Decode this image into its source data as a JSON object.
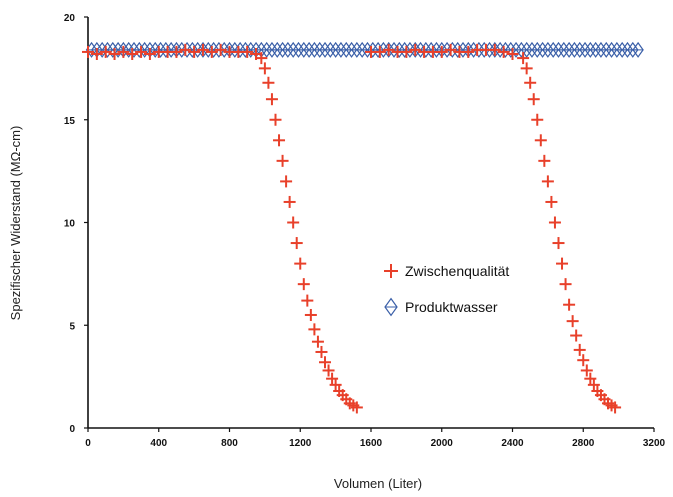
{
  "chart_data": {
    "type": "scatter",
    "xlabel": "Volumen (Liter)",
    "ylabel": "Spezifischer Widerstand (MΩ-cm)",
    "xlim": [
      0,
      3200
    ],
    "ylim": [
      0,
      20
    ],
    "x_ticks": [
      "0",
      "400",
      "800",
      "1200",
      "1600",
      "2000",
      "2400",
      "2800",
      "3200"
    ],
    "y_ticks": [
      "0",
      "5",
      "10",
      "15",
      "20"
    ],
    "grid": false,
    "legend_position": "center-right",
    "series": [
      {
        "name": "Zwischenqualität",
        "marker": "plus",
        "color": "#e8402a",
        "points": [
          [
            0,
            18.3
          ],
          [
            50,
            18.2
          ],
          [
            100,
            18.3
          ],
          [
            150,
            18.2
          ],
          [
            200,
            18.3
          ],
          [
            250,
            18.2
          ],
          [
            300,
            18.3
          ],
          [
            350,
            18.2
          ],
          [
            400,
            18.3
          ],
          [
            450,
            18.3
          ],
          [
            500,
            18.3
          ],
          [
            550,
            18.4
          ],
          [
            600,
            18.3
          ],
          [
            650,
            18.4
          ],
          [
            700,
            18.3
          ],
          [
            750,
            18.4
          ],
          [
            800,
            18.3
          ],
          [
            850,
            18.3
          ],
          [
            900,
            18.3
          ],
          [
            950,
            18.2
          ],
          [
            980,
            18.0
          ],
          [
            1000,
            17.5
          ],
          [
            1020,
            16.8
          ],
          [
            1040,
            16.0
          ],
          [
            1060,
            15.0
          ],
          [
            1080,
            14.0
          ],
          [
            1100,
            13.0
          ],
          [
            1120,
            12.0
          ],
          [
            1140,
            11.0
          ],
          [
            1160,
            10.0
          ],
          [
            1180,
            9.0
          ],
          [
            1200,
            8.0
          ],
          [
            1220,
            7.0
          ],
          [
            1240,
            6.2
          ],
          [
            1260,
            5.5
          ],
          [
            1280,
            4.8
          ],
          [
            1300,
            4.2
          ],
          [
            1320,
            3.7
          ],
          [
            1340,
            3.2
          ],
          [
            1360,
            2.8
          ],
          [
            1380,
            2.4
          ],
          [
            1400,
            2.1
          ],
          [
            1420,
            1.8
          ],
          [
            1440,
            1.6
          ],
          [
            1460,
            1.4
          ],
          [
            1480,
            1.2
          ],
          [
            1500,
            1.1
          ],
          [
            1520,
            1.0
          ],
          [
            1600,
            18.3
          ],
          [
            1650,
            18.3
          ],
          [
            1700,
            18.4
          ],
          [
            1750,
            18.3
          ],
          [
            1800,
            18.3
          ],
          [
            1850,
            18.4
          ],
          [
            1900,
            18.3
          ],
          [
            1950,
            18.3
          ],
          [
            2000,
            18.3
          ],
          [
            2050,
            18.4
          ],
          [
            2100,
            18.3
          ],
          [
            2150,
            18.3
          ],
          [
            2200,
            18.4
          ],
          [
            2250,
            18.4
          ],
          [
            2300,
            18.4
          ],
          [
            2350,
            18.3
          ],
          [
            2400,
            18.2
          ],
          [
            2460,
            18.0
          ],
          [
            2480,
            17.5
          ],
          [
            2500,
            16.8
          ],
          [
            2520,
            16.0
          ],
          [
            2540,
            15.0
          ],
          [
            2560,
            14.0
          ],
          [
            2580,
            13.0
          ],
          [
            2600,
            12.0
          ],
          [
            2620,
            11.0
          ],
          [
            2640,
            10.0
          ],
          [
            2660,
            9.0
          ],
          [
            2680,
            8.0
          ],
          [
            2700,
            7.0
          ],
          [
            2720,
            6.0
          ],
          [
            2740,
            5.2
          ],
          [
            2760,
            4.5
          ],
          [
            2780,
            3.8
          ],
          [
            2800,
            3.3
          ],
          [
            2820,
            2.8
          ],
          [
            2840,
            2.4
          ],
          [
            2860,
            2.1
          ],
          [
            2880,
            1.8
          ],
          [
            2900,
            1.6
          ],
          [
            2920,
            1.4
          ],
          [
            2940,
            1.2
          ],
          [
            2960,
            1.1
          ],
          [
            2980,
            1.0
          ]
        ]
      },
      {
        "name": "Produktwasser",
        "marker": "diamond",
        "color": "#3a5fa8",
        "points": [
          [
            20,
            18.4
          ],
          [
            50,
            18.4
          ],
          [
            80,
            18.4
          ],
          [
            110,
            18.4
          ],
          [
            140,
            18.4
          ],
          [
            170,
            18.4
          ],
          [
            200,
            18.4
          ],
          [
            230,
            18.4
          ],
          [
            260,
            18.4
          ],
          [
            290,
            18.4
          ],
          [
            320,
            18.4
          ],
          [
            350,
            18.4
          ],
          [
            380,
            18.4
          ],
          [
            410,
            18.4
          ],
          [
            440,
            18.4
          ],
          [
            470,
            18.4
          ],
          [
            500,
            18.4
          ],
          [
            530,
            18.4
          ],
          [
            560,
            18.4
          ],
          [
            590,
            18.4
          ],
          [
            620,
            18.4
          ],
          [
            650,
            18.4
          ],
          [
            680,
            18.4
          ],
          [
            710,
            18.4
          ],
          [
            740,
            18.4
          ],
          [
            770,
            18.4
          ],
          [
            800,
            18.4
          ],
          [
            830,
            18.4
          ],
          [
            860,
            18.4
          ],
          [
            890,
            18.4
          ],
          [
            920,
            18.4
          ],
          [
            950,
            18.4
          ],
          [
            980,
            18.4
          ],
          [
            1010,
            18.4
          ],
          [
            1040,
            18.4
          ],
          [
            1070,
            18.4
          ],
          [
            1100,
            18.4
          ],
          [
            1130,
            18.4
          ],
          [
            1160,
            18.4
          ],
          [
            1190,
            18.4
          ],
          [
            1220,
            18.4
          ],
          [
            1250,
            18.4
          ],
          [
            1280,
            18.4
          ],
          [
            1310,
            18.4
          ],
          [
            1340,
            18.4
          ],
          [
            1370,
            18.4
          ],
          [
            1400,
            18.4
          ],
          [
            1430,
            18.4
          ],
          [
            1460,
            18.4
          ],
          [
            1490,
            18.4
          ],
          [
            1520,
            18.4
          ],
          [
            1550,
            18.4
          ],
          [
            1580,
            18.4
          ],
          [
            1610,
            18.4
          ],
          [
            1640,
            18.4
          ],
          [
            1670,
            18.4
          ],
          [
            1700,
            18.4
          ],
          [
            1730,
            18.4
          ],
          [
            1760,
            18.4
          ],
          [
            1790,
            18.4
          ],
          [
            1820,
            18.4
          ],
          [
            1850,
            18.4
          ],
          [
            1880,
            18.4
          ],
          [
            1910,
            18.4
          ],
          [
            1940,
            18.4
          ],
          [
            1970,
            18.4
          ],
          [
            2000,
            18.4
          ],
          [
            2030,
            18.4
          ],
          [
            2060,
            18.4
          ],
          [
            2090,
            18.4
          ],
          [
            2120,
            18.4
          ],
          [
            2150,
            18.4
          ],
          [
            2180,
            18.4
          ],
          [
            2210,
            18.4
          ],
          [
            2240,
            18.4
          ],
          [
            2270,
            18.4
          ],
          [
            2300,
            18.4
          ],
          [
            2330,
            18.4
          ],
          [
            2360,
            18.4
          ],
          [
            2390,
            18.4
          ],
          [
            2420,
            18.4
          ],
          [
            2450,
            18.4
          ],
          [
            2480,
            18.4
          ],
          [
            2510,
            18.4
          ],
          [
            2540,
            18.4
          ],
          [
            2570,
            18.4
          ],
          [
            2600,
            18.4
          ],
          [
            2630,
            18.4
          ],
          [
            2660,
            18.4
          ],
          [
            2690,
            18.4
          ],
          [
            2720,
            18.4
          ],
          [
            2750,
            18.4
          ],
          [
            2780,
            18.4
          ],
          [
            2810,
            18.4
          ],
          [
            2840,
            18.4
          ],
          [
            2870,
            18.4
          ],
          [
            2900,
            18.4
          ],
          [
            2930,
            18.4
          ],
          [
            2960,
            18.4
          ],
          [
            2990,
            18.4
          ],
          [
            3020,
            18.4
          ],
          [
            3050,
            18.4
          ],
          [
            3080,
            18.4
          ],
          [
            3110,
            18.4
          ]
        ]
      }
    ]
  }
}
